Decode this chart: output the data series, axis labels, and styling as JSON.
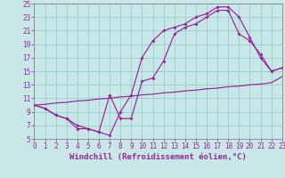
{
  "bg_color": "#c8e8e8",
  "line_color": "#992299",
  "grid_color": "#99cccc",
  "xlabel": "Windchill (Refroidissement éolien,°C)",
  "xlabel_fontsize": 6.5,
  "tick_fontsize": 5.5,
  "xlim": [
    0,
    23
  ],
  "ylim": [
    5,
    25
  ],
  "xticks": [
    0,
    1,
    2,
    3,
    4,
    5,
    6,
    7,
    8,
    9,
    10,
    11,
    12,
    13,
    14,
    15,
    16,
    17,
    18,
    19,
    20,
    21,
    22,
    23
  ],
  "yticks": [
    5,
    7,
    9,
    11,
    13,
    15,
    17,
    19,
    21,
    23,
    25
  ],
  "curve1_x": [
    0,
    1,
    2,
    3,
    4,
    5,
    6,
    7,
    8,
    9,
    10,
    11,
    12,
    13,
    14,
    15,
    16,
    17,
    18,
    19,
    20,
    21,
    22,
    23
  ],
  "curve1_y": [
    10,
    9.5,
    8.5,
    8,
    6.5,
    6.5,
    6,
    5.5,
    9,
    11.5,
    17,
    19.5,
    21,
    21.5,
    22,
    23,
    23.5,
    24.5,
    24.5,
    23,
    20,
    17,
    15,
    15.5
  ],
  "curve2_x": [
    0,
    1,
    2,
    3,
    4,
    5,
    6,
    7,
    8,
    9,
    10,
    11,
    12,
    13,
    14,
    15,
    16,
    17,
    18,
    19,
    20,
    21,
    22,
    23
  ],
  "curve2_y": [
    10,
    9.5,
    8.5,
    8,
    7,
    6.5,
    6,
    11.5,
    8,
    8,
    13.5,
    14,
    16.5,
    20.5,
    21.5,
    22,
    23,
    24,
    24,
    20.5,
    19.5,
    17.5,
    15,
    15.5
  ],
  "curve3_x": [
    0,
    1,
    2,
    3,
    4,
    5,
    6,
    7,
    8,
    9,
    10,
    11,
    12,
    13,
    14,
    15,
    16,
    17,
    18,
    19,
    20,
    21,
    22,
    23
  ],
  "curve3_y": [
    10,
    10.1,
    10.3,
    10.4,
    10.6,
    10.7,
    10.9,
    11.0,
    11.2,
    11.3,
    11.5,
    11.6,
    11.8,
    11.9,
    12.1,
    12.2,
    12.4,
    12.5,
    12.7,
    12.8,
    13.0,
    13.1,
    13.3,
    14.2
  ]
}
